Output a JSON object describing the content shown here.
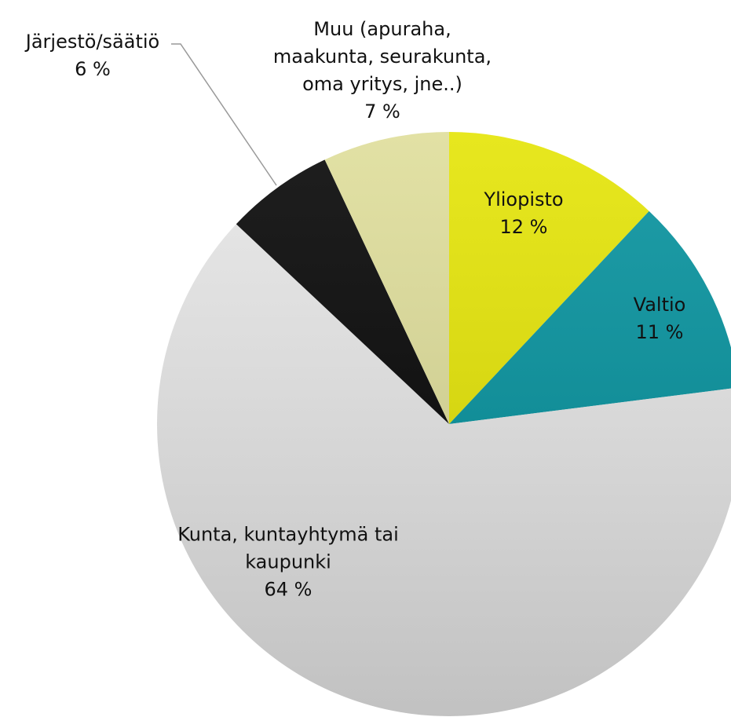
{
  "chart_data": {
    "type": "pie",
    "categories": [
      "Yliopisto",
      "Valtio",
      "Kunta, kuntayhtymä tai kaupunki",
      "Järjestö/säätiö",
      "Muu (apuraha, maakunta, seurakunta, oma yritys, jne..)"
    ],
    "values": [
      12,
      11,
      64,
      6,
      7
    ],
    "value_labels": [
      "12 %",
      "11 %",
      "64 %",
      "6 %",
      "7 %"
    ],
    "colors": [
      "#e4e400",
      "#00909c",
      "#e6e6e6",
      "#000000",
      "#dedd98"
    ]
  }
}
